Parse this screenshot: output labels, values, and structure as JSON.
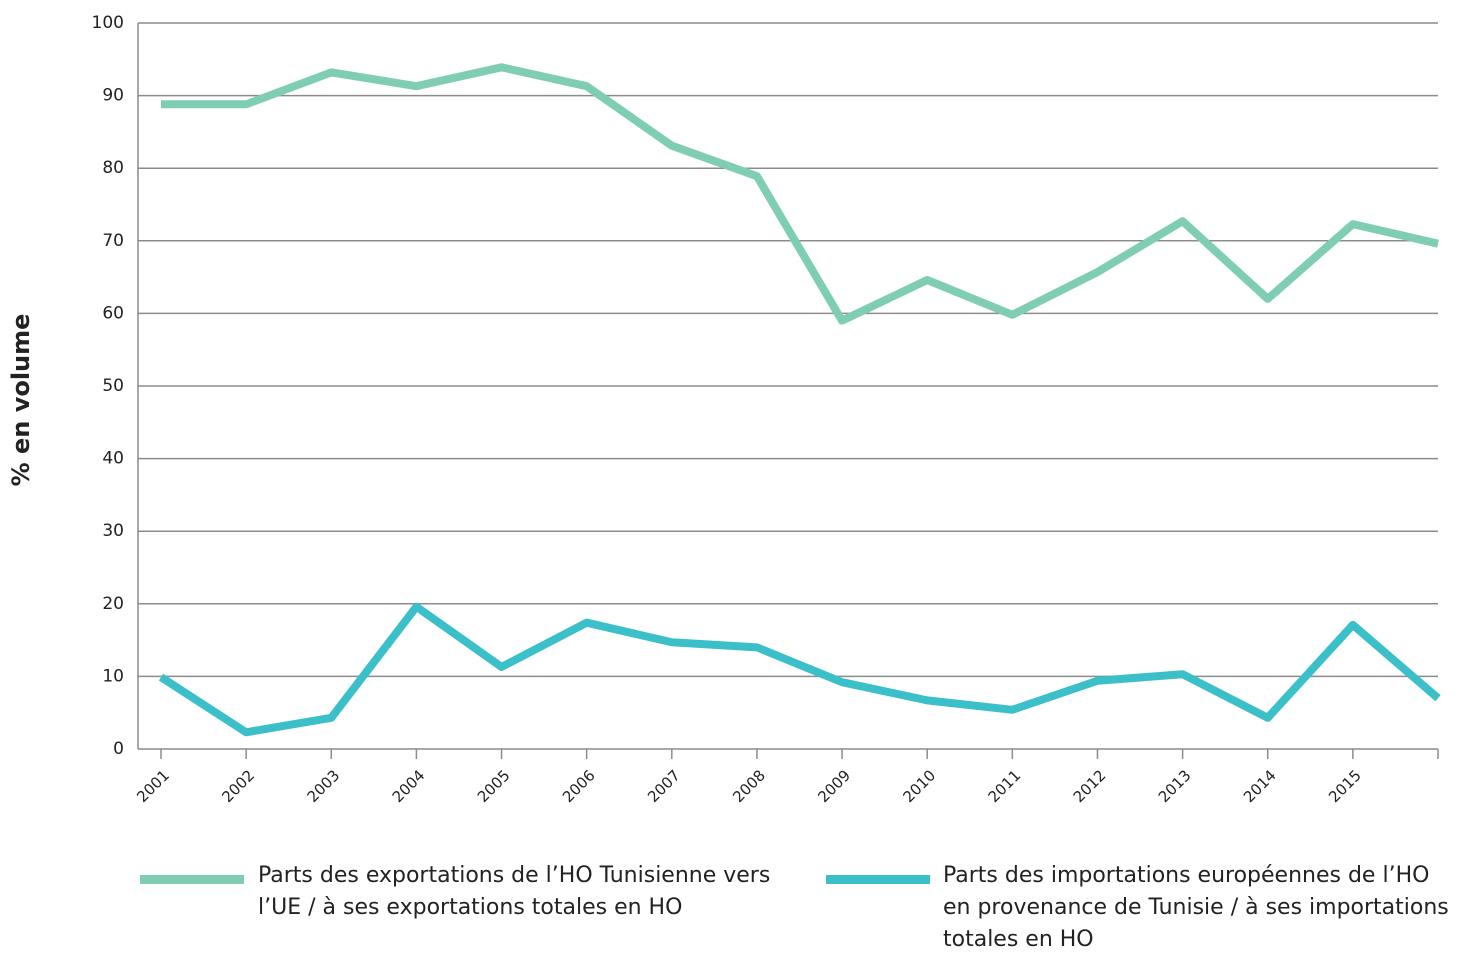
{
  "chart_data": {
    "type": "line",
    "y_label": "% en volume",
    "categories": [
      "2001",
      "2002",
      "2003",
      "2004",
      "2005",
      "2006",
      "2007",
      "2008",
      "2009",
      "2010",
      "2011",
      "2012",
      "2013",
      "2014",
      "2015",
      null
    ],
    "series": [
      {
        "name": "Parts des exportations de l’HO Tunisienne vers l’UE / à ses exportations totales en HO",
        "color": "#7fcdb4",
        "values": [
          88.8,
          88.8,
          93.2,
          91.3,
          93.9,
          91.3,
          83.1,
          78.9,
          59.0,
          64.6,
          59.8,
          65.7,
          72.7,
          62.0,
          72.3,
          69.6
        ]
      },
      {
        "name": "Parts des importations européennes de l’HO en provenance de Tunisie / à ses importations totales en HO",
        "color": "#3bbfc8",
        "values": [
          9.9,
          2.3,
          4.3,
          19.6,
          11.3,
          17.4,
          14.7,
          14.0,
          9.2,
          6.7,
          5.4,
          9.4,
          10.3,
          4.3,
          17.1,
          7.0
        ]
      }
    ],
    "ylim": [
      0,
      100
    ],
    "yticks": [
      0,
      10,
      20,
      30,
      40,
      50,
      60,
      70,
      80,
      90,
      100
    ],
    "grid": true
  }
}
